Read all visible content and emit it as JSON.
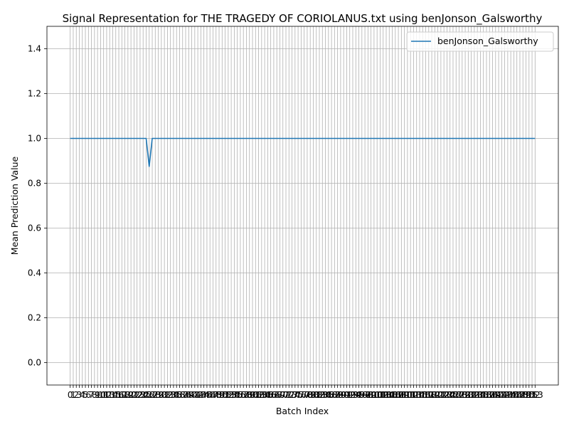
{
  "chart_data": {
    "type": "line",
    "title": "Signal Representation for THE TRAGEDY OF CORIOLANUS.txt using benJonson_Galsworthy",
    "xlabel": "Batch Index",
    "ylabel": "Mean Prediction Value",
    "x": [
      0,
      1,
      2,
      3,
      4,
      5,
      6,
      7,
      8,
      9,
      10,
      11,
      12,
      13,
      14,
      15,
      16,
      17,
      18,
      19,
      20,
      21,
      22,
      23,
      24,
      25,
      26,
      27,
      28,
      29,
      30,
      31,
      32,
      33,
      34,
      35,
      36,
      37,
      38,
      39,
      40,
      41,
      42,
      43,
      44,
      45,
      46,
      47,
      48,
      49,
      50,
      51,
      52,
      53,
      54,
      55,
      56,
      57,
      58,
      59,
      60,
      61,
      62,
      63,
      64,
      65,
      66,
      67,
      68,
      69,
      70,
      71,
      72,
      73,
      74,
      75,
      76,
      77,
      78,
      79,
      80,
      81,
      82,
      83,
      84,
      85,
      86,
      87,
      88,
      89,
      90,
      91,
      92,
      93,
      94,
      95,
      96,
      97,
      98,
      99,
      100,
      101,
      102,
      103,
      104,
      105,
      106,
      107,
      108,
      109,
      110,
      111,
      112,
      113,
      114,
      115,
      116,
      117,
      118,
      119,
      120,
      121,
      122,
      123,
      124,
      125,
      126,
      127,
      128,
      129,
      130,
      131,
      132,
      133,
      134,
      135,
      136,
      137,
      138,
      139,
      140,
      141,
      142,
      143,
      144,
      145,
      146,
      147,
      148,
      149,
      150,
      151,
      152,
      153
    ],
    "xticks": [
      "0",
      "1",
      "2",
      "3",
      "4",
      "5",
      "6",
      "7",
      "8",
      "9",
      "10",
      "11",
      "12",
      "13",
      "14",
      "15",
      "16",
      "17",
      "18",
      "19",
      "20",
      "21",
      "22",
      "23",
      "24",
      "25",
      "26",
      "27",
      "28",
      "29",
      "30",
      "31",
      "32",
      "33",
      "34",
      "35",
      "36",
      "37",
      "38",
      "39",
      "40",
      "41",
      "42",
      "43",
      "44",
      "45",
      "46",
      "47",
      "48",
      "49",
      "50",
      "51",
      "52",
      "53",
      "54",
      "55",
      "56",
      "57",
      "58",
      "59",
      "60",
      "61",
      "62",
      "63",
      "64",
      "65",
      "66",
      "67",
      "68",
      "69",
      "70",
      "71",
      "72",
      "73",
      "74",
      "75",
      "76",
      "77",
      "78",
      "79",
      "80",
      "81",
      "82",
      "83",
      "84",
      "85",
      "86",
      "87",
      "88",
      "89",
      "90",
      "91",
      "92",
      "93",
      "94",
      "95",
      "96",
      "97",
      "98",
      "99",
      "100",
      "101",
      "102",
      "103",
      "104",
      "105",
      "106",
      "107",
      "108",
      "109",
      "110",
      "111",
      "112",
      "113",
      "114",
      "115",
      "116",
      "117",
      "118",
      "119",
      "120",
      "121",
      "122",
      "123",
      "124",
      "125",
      "126",
      "127",
      "128",
      "129",
      "130",
      "131",
      "132",
      "133",
      "134",
      "135",
      "136",
      "137",
      "138",
      "139",
      "140",
      "141",
      "142",
      "143",
      "144",
      "145",
      "146",
      "147",
      "148",
      "149",
      "150",
      "151",
      "152",
      "153"
    ],
    "series": [
      {
        "name": "benJonson_Galsworthy",
        "color": "#1f77b4",
        "values": [
          1,
          1,
          1,
          1,
          1,
          1,
          1,
          1,
          1,
          1,
          1,
          1,
          1,
          1,
          1,
          1,
          1,
          1,
          1,
          1,
          1,
          1,
          1,
          1,
          1,
          1,
          0.875,
          1,
          1,
          1,
          1,
          1,
          1,
          1,
          1,
          1,
          1,
          1,
          1,
          1,
          1,
          1,
          1,
          1,
          1,
          1,
          1,
          1,
          1,
          1,
          1,
          1,
          1,
          1,
          1,
          1,
          1,
          1,
          1,
          1,
          1,
          1,
          1,
          1,
          1,
          1,
          1,
          1,
          1,
          1,
          1,
          1,
          1,
          1,
          1,
          1,
          1,
          1,
          1,
          1,
          1,
          1,
          1,
          1,
          1,
          1,
          1,
          1,
          1,
          1,
          1,
          1,
          1,
          1,
          1,
          1,
          1,
          1,
          1,
          1,
          1,
          1,
          1,
          1,
          1,
          1,
          1,
          1,
          1,
          1,
          1,
          1,
          1,
          1,
          1,
          1,
          1,
          1,
          1,
          1,
          1,
          1,
          1,
          1,
          1,
          1,
          1,
          1,
          1,
          1,
          1,
          1,
          1,
          1,
          1,
          1,
          1,
          1,
          1,
          1,
          1,
          1,
          1,
          1,
          1,
          1,
          1,
          1,
          1,
          1,
          1,
          1,
          1,
          1
        ]
      }
    ],
    "yticks": [
      "0.0",
      "0.2",
      "0.4",
      "0.6",
      "0.8",
      "1.0",
      "1.2",
      "1.4"
    ],
    "ylim": [
      -0.1,
      1.5
    ],
    "xlim": [
      -7.65,
      160.65
    ],
    "grid": true,
    "legend": "top-right"
  }
}
